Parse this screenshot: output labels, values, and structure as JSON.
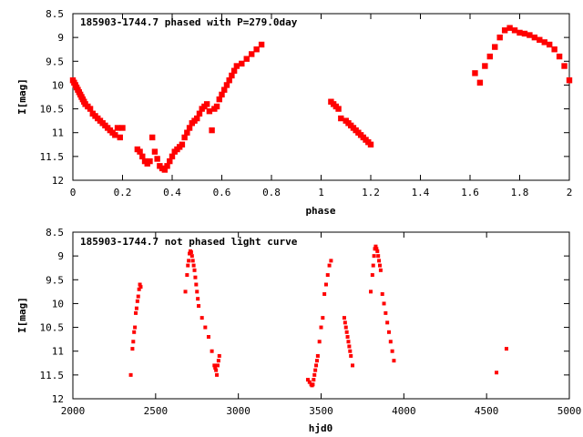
{
  "chart_data": [
    {
      "type": "scatter",
      "title": "185903-1744.7 phased with P=279.0day",
      "xlabel": "phase",
      "ylabel": "I[mag]",
      "xlim": [
        0,
        2
      ],
      "ylim": [
        8.5,
        12
      ],
      "y_inverted": true,
      "grid": false,
      "legend": "none",
      "marker_color": "#ff0000",
      "xticks": [
        "0",
        "0.2",
        "0.4",
        "0.6",
        "0.8",
        "1",
        "1.2",
        "1.4",
        "1.6",
        "1.8",
        "2"
      ],
      "yticks": [
        "8.5",
        "9",
        "9.5",
        "10",
        "10.5",
        "11",
        "11.5",
        "12"
      ],
      "series": [
        {
          "x": [
            0.0,
            0.005,
            0.01,
            0.015,
            0.02,
            0.025,
            0.03,
            0.035,
            0.04,
            0.045,
            0.05,
            0.06,
            0.07,
            0.08,
            0.09,
            0.1,
            0.11,
            0.12,
            0.13,
            0.14,
            0.15,
            0.16,
            0.17,
            0.18,
            0.19,
            0.2,
            0.26,
            0.27,
            0.28,
            0.29,
            0.3,
            0.31,
            0.32,
            0.33,
            0.34,
            0.35,
            0.36,
            0.37,
            0.38,
            0.39,
            0.4,
            0.41,
            0.42,
            0.43,
            0.44,
            0.45,
            0.46,
            0.47,
            0.48,
            0.49,
            0.5,
            0.51,
            0.52,
            0.53,
            0.54,
            0.55,
            0.56,
            0.57,
            0.58,
            0.59,
            0.6,
            0.61,
            0.62,
            0.63,
            0.64,
            0.65,
            0.66,
            0.68,
            0.7,
            0.72,
            0.74,
            0.76,
            1.04,
            1.05,
            1.06,
            1.07,
            1.08,
            1.1,
            1.11,
            1.12,
            1.13,
            1.14,
            1.15,
            1.16,
            1.17,
            1.18,
            1.19,
            1.2,
            1.62,
            1.64,
            1.66,
            1.68,
            1.7,
            1.72,
            1.74,
            1.76,
            1.78,
            1.8,
            1.82,
            1.84,
            1.86,
            1.88,
            1.9,
            1.92,
            1.94,
            1.96,
            1.98,
            2.0
          ],
          "y": [
            9.9,
            9.95,
            10.0,
            10.05,
            10.1,
            10.15,
            10.2,
            10.25,
            10.3,
            10.35,
            10.4,
            10.45,
            10.5,
            10.6,
            10.65,
            10.7,
            10.75,
            10.8,
            10.85,
            10.9,
            10.95,
            11.0,
            11.05,
            10.9,
            11.1,
            10.9,
            11.35,
            11.4,
            11.5,
            11.6,
            11.65,
            11.6,
            11.1,
            11.4,
            11.55,
            11.7,
            11.75,
            11.78,
            11.7,
            11.6,
            11.5,
            11.4,
            11.35,
            11.3,
            11.25,
            11.1,
            11.0,
            10.9,
            10.8,
            10.75,
            10.7,
            10.6,
            10.5,
            10.45,
            10.4,
            10.55,
            10.95,
            10.5,
            10.45,
            10.3,
            10.2,
            10.1,
            10.0,
            9.9,
            9.8,
            9.7,
            9.6,
            9.55,
            9.45,
            9.35,
            9.25,
            9.15,
            10.35,
            10.4,
            10.45,
            10.5,
            10.7,
            10.75,
            10.8,
            10.85,
            10.9,
            10.95,
            11.0,
            11.05,
            11.1,
            11.15,
            11.2,
            11.25,
            9.75,
            9.95,
            9.6,
            9.4,
            9.2,
            9.0,
            8.85,
            8.8,
            8.85,
            8.9,
            8.92,
            8.95,
            9.0,
            9.05,
            9.1,
            9.15,
            9.25,
            9.4,
            9.6,
            9.9
          ]
        }
      ]
    },
    {
      "type": "scatter",
      "title": "185903-1744.7 not phased light curve",
      "xlabel": "hjd0",
      "ylabel": "I[mag]",
      "xlim": [
        2000,
        5000
      ],
      "ylim": [
        8.5,
        12
      ],
      "y_inverted": true,
      "grid": false,
      "legend": "none",
      "marker_color": "#ff0000",
      "xticks": [
        "2000",
        "2500",
        "3000",
        "3500",
        "4000",
        "4500",
        "5000"
      ],
      "yticks": [
        "8.5",
        "9",
        "9.5",
        "10",
        "10.5",
        "11",
        "11.5",
        "12"
      ],
      "series": [
        {
          "x": [
            2350,
            2360,
            2365,
            2370,
            2375,
            2380,
            2385,
            2390,
            2395,
            2400,
            2405,
            2410,
            2680,
            2690,
            2695,
            2700,
            2705,
            2710,
            2715,
            2720,
            2725,
            2730,
            2735,
            2740,
            2745,
            2750,
            2755,
            2760,
            2780,
            2800,
            2820,
            2840,
            2855,
            2860,
            2865,
            2870,
            2875,
            2880,
            2885,
            3420,
            3430,
            3440,
            3445,
            3450,
            3455,
            3460,
            3465,
            3470,
            3475,
            3480,
            3490,
            3500,
            3510,
            3520,
            3530,
            3540,
            3550,
            3560,
            3640,
            3645,
            3650,
            3655,
            3660,
            3665,
            3670,
            3675,
            3680,
            3690,
            3800,
            3810,
            3815,
            3820,
            3825,
            3830,
            3835,
            3840,
            3845,
            3850,
            3855,
            3860,
            3870,
            3880,
            3890,
            3900,
            3910,
            3920,
            3930,
            3940,
            4560,
            4620
          ],
          "y": [
            11.5,
            10.95,
            10.8,
            10.6,
            10.5,
            10.2,
            10.1,
            9.95,
            9.85,
            9.7,
            9.6,
            9.65,
            9.75,
            9.4,
            9.2,
            9.1,
            8.95,
            8.9,
            8.92,
            9.0,
            9.1,
            9.2,
            9.3,
            9.45,
            9.6,
            9.75,
            9.9,
            10.05,
            10.3,
            10.5,
            10.7,
            11.0,
            11.3,
            11.35,
            11.4,
            11.5,
            11.3,
            11.2,
            11.1,
            11.6,
            11.65,
            11.7,
            11.72,
            11.7,
            11.6,
            11.5,
            11.4,
            11.3,
            11.2,
            11.1,
            10.8,
            10.5,
            10.3,
            9.8,
            9.6,
            9.4,
            9.2,
            9.1,
            10.3,
            10.4,
            10.5,
            10.6,
            10.7,
            10.8,
            10.9,
            11.0,
            11.1,
            11.3,
            9.75,
            9.4,
            9.2,
            9.0,
            8.85,
            8.8,
            8.85,
            8.9,
            9.0,
            9.1,
            9.2,
            9.3,
            9.8,
            10.0,
            10.2,
            10.4,
            10.6,
            10.8,
            11.0,
            11.2,
            11.45,
            10.95
          ]
        }
      ]
    }
  ]
}
